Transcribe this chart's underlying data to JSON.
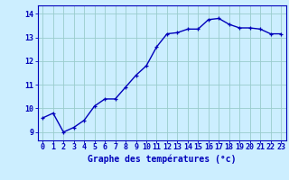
{
  "x": [
    0,
    1,
    2,
    3,
    4,
    5,
    6,
    7,
    8,
    9,
    10,
    11,
    12,
    13,
    14,
    15,
    16,
    17,
    18,
    19,
    20,
    21,
    22,
    23
  ],
  "y": [
    9.6,
    9.8,
    9.0,
    9.2,
    9.5,
    10.1,
    10.4,
    10.4,
    10.9,
    11.4,
    11.8,
    12.6,
    13.15,
    13.2,
    13.35,
    13.35,
    13.75,
    13.8,
    13.55,
    13.4,
    13.4,
    13.35,
    13.15,
    13.15
  ],
  "line_color": "#0000bb",
  "marker": "+",
  "marker_size": 3.5,
  "bg_color": "#cceeff",
  "grid_color": "#99cccc",
  "xlabel": "Graphe des températures (°c)",
  "xlabel_color": "#0000bb",
  "xlabel_fontsize": 7,
  "tick_color": "#0000bb",
  "tick_fontsize": 6,
  "ylabel_ticks": [
    9,
    10,
    11,
    12,
    13,
    14
  ],
  "xlim": [
    -0.5,
    23.5
  ],
  "ylim": [
    8.65,
    14.35
  ],
  "line_width": 1.0,
  "border_color": "#0000bb"
}
